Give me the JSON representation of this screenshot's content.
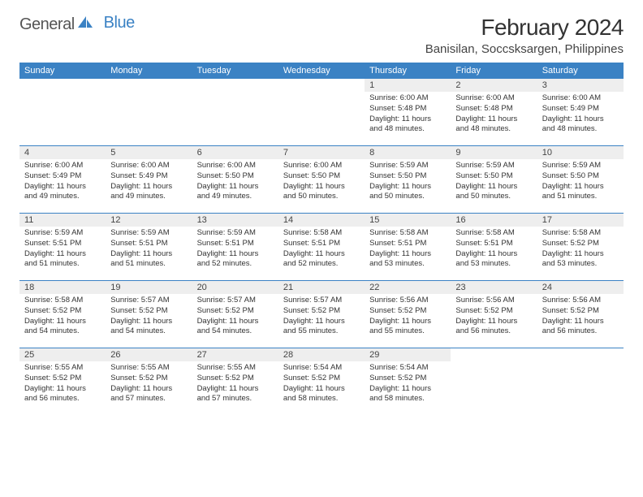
{
  "brand": {
    "part1": "General",
    "part2": "Blue"
  },
  "title": "February 2024",
  "location": "Banisilan, Soccsksargen, Philippines",
  "colors": {
    "header_bg": "#3b82c4",
    "daynum_bg": "#eeeeee",
    "text": "#333333",
    "border": "#3b82c4"
  },
  "typography": {
    "title_fontsize": 28,
    "location_fontsize": 15,
    "dow_fontsize": 11,
    "daynum_fontsize": 11,
    "info_fontsize": 9.5
  },
  "layout": {
    "columns": 7,
    "rows": 5
  },
  "days_of_week": [
    "Sunday",
    "Monday",
    "Tuesday",
    "Wednesday",
    "Thursday",
    "Friday",
    "Saturday"
  ],
  "weeks": [
    [
      null,
      null,
      null,
      null,
      {
        "n": "1",
        "sr": "6:00 AM",
        "ss": "5:48 PM",
        "dl": "11 hours and 48 minutes."
      },
      {
        "n": "2",
        "sr": "6:00 AM",
        "ss": "5:48 PM",
        "dl": "11 hours and 48 minutes."
      },
      {
        "n": "3",
        "sr": "6:00 AM",
        "ss": "5:49 PM",
        "dl": "11 hours and 48 minutes."
      }
    ],
    [
      {
        "n": "4",
        "sr": "6:00 AM",
        "ss": "5:49 PM",
        "dl": "11 hours and 49 minutes."
      },
      {
        "n": "5",
        "sr": "6:00 AM",
        "ss": "5:49 PM",
        "dl": "11 hours and 49 minutes."
      },
      {
        "n": "6",
        "sr": "6:00 AM",
        "ss": "5:50 PM",
        "dl": "11 hours and 49 minutes."
      },
      {
        "n": "7",
        "sr": "6:00 AM",
        "ss": "5:50 PM",
        "dl": "11 hours and 50 minutes."
      },
      {
        "n": "8",
        "sr": "5:59 AM",
        "ss": "5:50 PM",
        "dl": "11 hours and 50 minutes."
      },
      {
        "n": "9",
        "sr": "5:59 AM",
        "ss": "5:50 PM",
        "dl": "11 hours and 50 minutes."
      },
      {
        "n": "10",
        "sr": "5:59 AM",
        "ss": "5:50 PM",
        "dl": "11 hours and 51 minutes."
      }
    ],
    [
      {
        "n": "11",
        "sr": "5:59 AM",
        "ss": "5:51 PM",
        "dl": "11 hours and 51 minutes."
      },
      {
        "n": "12",
        "sr": "5:59 AM",
        "ss": "5:51 PM",
        "dl": "11 hours and 51 minutes."
      },
      {
        "n": "13",
        "sr": "5:59 AM",
        "ss": "5:51 PM",
        "dl": "11 hours and 52 minutes."
      },
      {
        "n": "14",
        "sr": "5:58 AM",
        "ss": "5:51 PM",
        "dl": "11 hours and 52 minutes."
      },
      {
        "n": "15",
        "sr": "5:58 AM",
        "ss": "5:51 PM",
        "dl": "11 hours and 53 minutes."
      },
      {
        "n": "16",
        "sr": "5:58 AM",
        "ss": "5:51 PM",
        "dl": "11 hours and 53 minutes."
      },
      {
        "n": "17",
        "sr": "5:58 AM",
        "ss": "5:52 PM",
        "dl": "11 hours and 53 minutes."
      }
    ],
    [
      {
        "n": "18",
        "sr": "5:58 AM",
        "ss": "5:52 PM",
        "dl": "11 hours and 54 minutes."
      },
      {
        "n": "19",
        "sr": "5:57 AM",
        "ss": "5:52 PM",
        "dl": "11 hours and 54 minutes."
      },
      {
        "n": "20",
        "sr": "5:57 AM",
        "ss": "5:52 PM",
        "dl": "11 hours and 54 minutes."
      },
      {
        "n": "21",
        "sr": "5:57 AM",
        "ss": "5:52 PM",
        "dl": "11 hours and 55 minutes."
      },
      {
        "n": "22",
        "sr": "5:56 AM",
        "ss": "5:52 PM",
        "dl": "11 hours and 55 minutes."
      },
      {
        "n": "23",
        "sr": "5:56 AM",
        "ss": "5:52 PM",
        "dl": "11 hours and 56 minutes."
      },
      {
        "n": "24",
        "sr": "5:56 AM",
        "ss": "5:52 PM",
        "dl": "11 hours and 56 minutes."
      }
    ],
    [
      {
        "n": "25",
        "sr": "5:55 AM",
        "ss": "5:52 PM",
        "dl": "11 hours and 56 minutes."
      },
      {
        "n": "26",
        "sr": "5:55 AM",
        "ss": "5:52 PM",
        "dl": "11 hours and 57 minutes."
      },
      {
        "n": "27",
        "sr": "5:55 AM",
        "ss": "5:52 PM",
        "dl": "11 hours and 57 minutes."
      },
      {
        "n": "28",
        "sr": "5:54 AM",
        "ss": "5:52 PM",
        "dl": "11 hours and 58 minutes."
      },
      {
        "n": "29",
        "sr": "5:54 AM",
        "ss": "5:52 PM",
        "dl": "11 hours and 58 minutes."
      },
      null,
      null
    ]
  ],
  "labels": {
    "sunrise": "Sunrise:",
    "sunset": "Sunset:",
    "daylight": "Daylight:"
  }
}
